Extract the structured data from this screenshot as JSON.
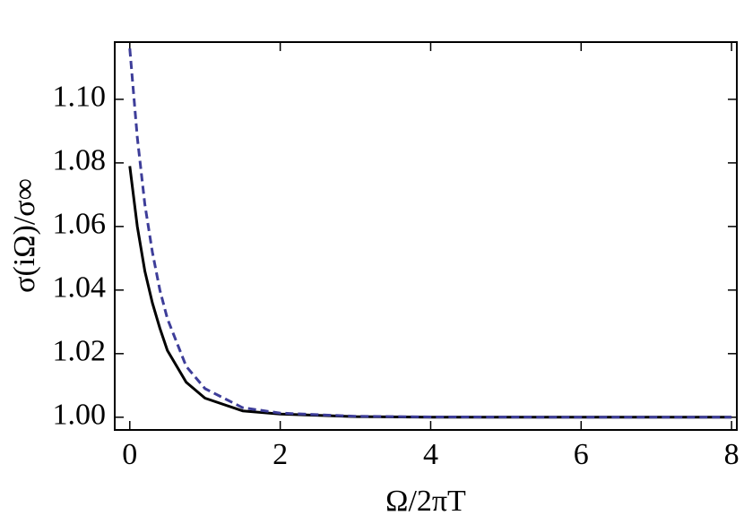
{
  "chart_data": {
    "type": "line",
    "xlabel": "Ω/2πT",
    "ylabel": "σ(iΩ)/σ∞",
    "x": [
      0,
      0.1,
      0.2,
      0.3,
      0.4,
      0.5,
      0.75,
      1,
      1.5,
      2,
      3,
      4,
      6,
      8
    ],
    "series": [
      {
        "color": "#000000",
        "dash": false,
        "values": [
          1.079,
          1.06,
          1.046,
          1.036,
          1.028,
          1.021,
          1.011,
          1.006,
          1.002,
          1.001,
          1.0002,
          1.0,
          1.0,
          1.0
        ]
      },
      {
        "color": "#3d3d99",
        "dash": true,
        "values": [
          1.116,
          1.088,
          1.067,
          1.052,
          1.04,
          1.031,
          1.016,
          1.009,
          1.003,
          1.0013,
          1.0003,
          1.0001,
          1.0,
          1.0
        ]
      }
    ],
    "xlim": [
      -0.2,
      8.07
    ],
    "ylim": [
      0.996,
      1.118
    ],
    "xticks": [
      0,
      2,
      4,
      6,
      8
    ],
    "yticks": [
      {
        "value": 1.0,
        "label": "1.00"
      },
      1.02,
      1.04,
      1.06,
      1.08,
      {
        "value": 1.1,
        "label": "1.10"
      }
    ]
  }
}
